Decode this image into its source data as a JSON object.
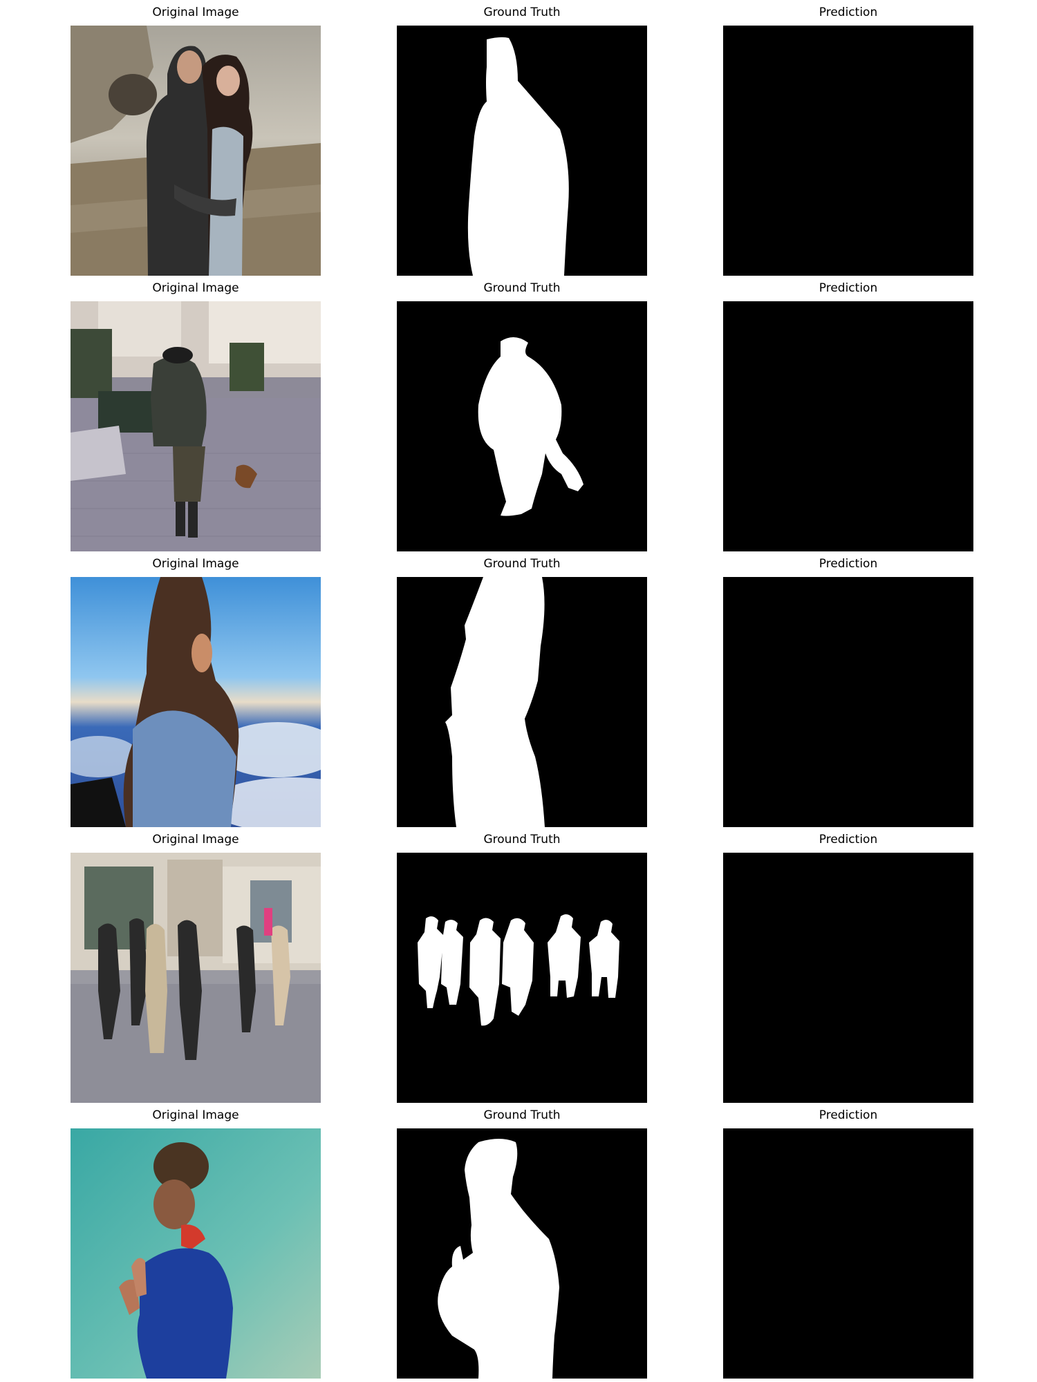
{
  "figure": {
    "rows": [
      {
        "titles": {
          "original": "Original Image",
          "ground_truth": "Ground Truth",
          "prediction": "Prediction"
        },
        "photo": "embracing-couple-coastal-cliff"
      },
      {
        "titles": {
          "original": "Original Image",
          "ground_truth": "Ground Truth",
          "prediction": "Prediction"
        },
        "photo": "man-walking-town-square"
      },
      {
        "titles": {
          "original": "Original Image",
          "ground_truth": "Ground Truth",
          "prediction": "Prediction"
        },
        "photo": "woman-profile-above-clouds"
      },
      {
        "titles": {
          "original": "Original Image",
          "ground_truth": "Ground Truth",
          "prediction": "Prediction"
        },
        "photo": "pedestrians-shopping-street"
      },
      {
        "titles": {
          "original": "Original Image",
          "ground_truth": "Ground Truth",
          "prediction": "Prediction"
        },
        "photo": "woman-blue-jacket-teal-backdrop"
      }
    ],
    "colors": {
      "mask_foreground": "#ffffff",
      "mask_background": "#000000",
      "figure_background": "#ffffff"
    }
  }
}
